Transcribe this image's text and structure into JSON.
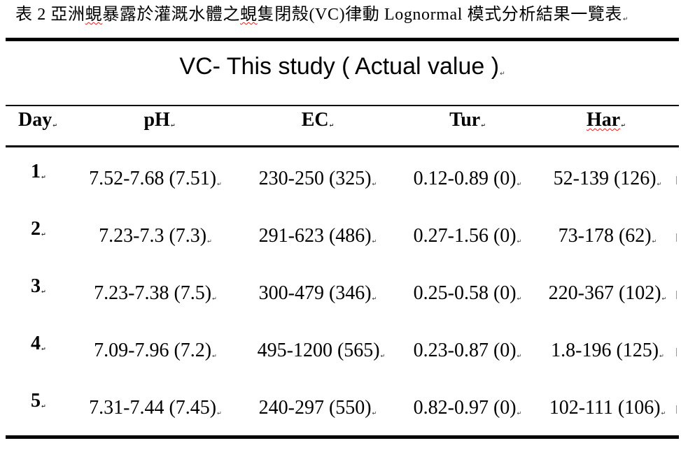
{
  "caption": {
    "prefix": "表 2 ",
    "w1": "亞洲",
    "w2": "蜆",
    "w3": "暴露於灌溉水體之",
    "w4": "蜆",
    "w5": "隻閉殼(VC)律動 Lognormal 模式分析結果一覽表"
  },
  "table": {
    "title": "VC- This study ( Actual value )",
    "headers": [
      "Day",
      "pH",
      "EC",
      "Tur",
      "Har"
    ],
    "rows": [
      {
        "day": "1",
        "ph": "7.52-7.68 (7.51)",
        "ec": "230-250 (325)",
        "tur": "0.12-0.89 (0)",
        "har": "52-139 (126)"
      },
      {
        "day": "2",
        "ph": "7.23-7.3 (7.3)",
        "ec": "291-623 (486)",
        "tur": "0.27-1.56 (0)",
        "har": "73-178 (62)"
      },
      {
        "day": "3",
        "ph": "7.23-7.38 (7.5)",
        "ec": "300-479 (346)",
        "tur": "0.25-0.58 (0)",
        "har": "220-367 (102)"
      },
      {
        "day": "4",
        "ph": "7.09-7.96 (7.2)",
        "ec": "495-1200 (565)",
        "tur": "0.23-0.87 (0)",
        "har": "1.8-196 (125)"
      },
      {
        "day": "5",
        "ph": "7.31-7.44 (7.45)",
        "ec": "240-297 (550)",
        "tur": "0.82-0.97 (0)",
        "har": "102-111 (106)"
      }
    ]
  }
}
